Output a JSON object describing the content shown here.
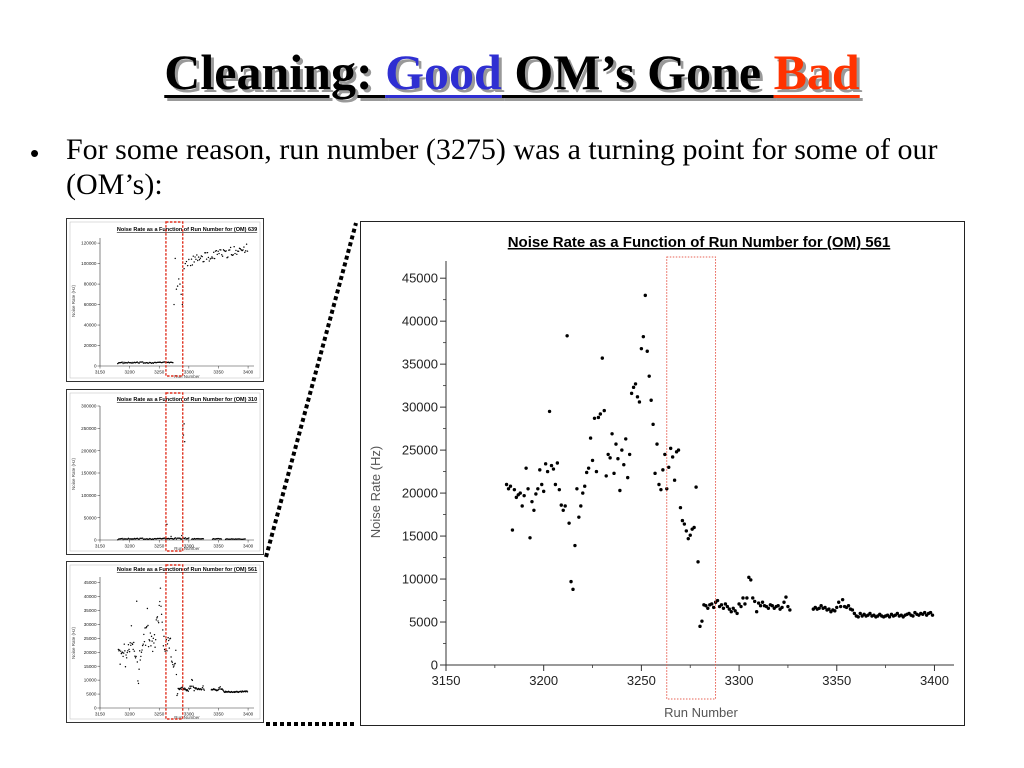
{
  "slide": {
    "title_prefix": "Cleaning: ",
    "title_good": "Good",
    "title_middle": " OM’s Gone ",
    "title_bad": "Bad",
    "bullet": "For some reason, run number (3275) was a turning point for some of our (OM’s):",
    "colors": {
      "good": "#2f2fd2",
      "bad": "#ff3300",
      "highlight_box": "#e0301f"
    }
  },
  "chart_data": [
    {
      "id": "om639",
      "type": "scatter",
      "title": "Noise Rate as a Function of Run Number for (OM) 639",
      "xlabel": "Run Number",
      "ylabel": "Noise Rate (Hz)",
      "xlim": [
        3150,
        3410
      ],
      "ylim": [
        0,
        125000
      ],
      "xticks": [
        3150,
        3200,
        3250,
        3300,
        3350,
        3400
      ],
      "yticks": [
        0,
        20000,
        40000,
        60000,
        80000,
        100000,
        120000
      ],
      "series": [
        {
          "segments": [
            {
              "x0": 3180,
              "x1": 3273,
              "y0": 3000,
              "y1": 3500,
              "jitter": 700,
              "step": 1.5
            },
            {
              "x0": 3303,
              "x1": 3400,
              "y0": 103000,
              "y1": 115000,
              "jitter": 5000,
              "step": 1.5
            }
          ],
          "points": [
            [
              3275,
              60000
            ],
            [
              3277,
              105000
            ],
            [
              3279,
              75000
            ],
            [
              3281,
              78000
            ],
            [
              3283,
              85000
            ],
            [
              3285,
              80000
            ],
            [
              3287,
              70000
            ],
            [
              3289,
              60000
            ],
            [
              3290,
              77000
            ],
            [
              3292,
              95000
            ],
            [
              3294,
              100000
            ],
            [
              3296,
              102000
            ],
            [
              3298,
              98000
            ],
            [
              3300,
              104000
            ]
          ]
        }
      ]
    },
    {
      "id": "om310",
      "type": "scatter",
      "title": "Noise Rate as a Function of Run Number for (OM) 310",
      "xlabel": "Run Number",
      "ylabel": "Noise Rate (Hz)",
      "xlim": [
        3150,
        3410
      ],
      "ylim": [
        0,
        300000
      ],
      "xticks": [
        3150,
        3200,
        3250,
        3300,
        3350,
        3400
      ],
      "yticks": [
        0,
        50000,
        100000,
        150000,
        200000,
        250000,
        300000
      ],
      "series": [
        {
          "segments": [
            {
              "x0": 3180,
              "x1": 3300,
              "y0": 2000,
              "y1": 3500,
              "jitter": 1500,
              "step": 1.5
            },
            {
              "x0": 3305,
              "x1": 3325,
              "y0": 2500,
              "y1": 2500,
              "jitter": 800,
              "step": 1.5
            },
            {
              "x0": 3340,
              "x1": 3355,
              "y0": 2500,
              "y1": 2500,
              "jitter": 800,
              "step": 1.5
            },
            {
              "x0": 3362,
              "x1": 3395,
              "y0": 2000,
              "y1": 2000,
              "jitter": 600,
              "step": 1.5
            }
          ],
          "points": [
            [
              3263,
              35000
            ],
            [
              3270,
              8000
            ],
            [
              3288,
              10000
            ],
            [
              3290,
              250000
            ],
            [
              3291,
              235000
            ],
            [
              3292,
              260000
            ],
            [
              3293,
              220000
            ]
          ]
        }
      ]
    },
    {
      "id": "om561_small",
      "type": "scatter",
      "title": "Noise Rate as a Function of Run Number for (OM) 561",
      "xlabel": "Run Number",
      "ylabel": "Noise Rate (Hz)",
      "xlim": [
        3150,
        3410
      ],
      "ylim": [
        0,
        47000
      ],
      "xticks": [
        3150,
        3200,
        3250,
        3300,
        3350,
        3400
      ],
      "yticks": [
        0,
        5000,
        10000,
        15000,
        20000,
        25000,
        30000,
        35000,
        40000,
        45000
      ]
    },
    {
      "id": "om561",
      "type": "scatter",
      "title": "Noise Rate as a Function of Run Number for (OM) 561",
      "xlabel": "Run Number",
      "ylabel": "Noise Rate (Hz)",
      "xlim": [
        3150,
        3410
      ],
      "ylim": [
        0,
        47000
      ],
      "xticks": [
        3150,
        3200,
        3250,
        3300,
        3350,
        3400
      ],
      "yticks": [
        0,
        5000,
        10000,
        15000,
        20000,
        25000,
        30000,
        35000,
        40000,
        45000
      ],
      "highlight_x": [
        3263,
        3288
      ],
      "series": [
        {
          "points": [
            [
              3181,
              21000
            ],
            [
              3182,
              20500
            ],
            [
              3183,
              20800
            ],
            [
              3184,
              15700
            ],
            [
              3185,
              20400
            ],
            [
              3186,
              19500
            ],
            [
              3187,
              19800
            ],
            [
              3188,
              20000
            ],
            [
              3189,
              18500
            ],
            [
              3190,
              19700
            ],
            [
              3191,
              22900
            ],
            [
              3192,
              20500
            ],
            [
              3193,
              14800
            ],
            [
              3194,
              19000
            ],
            [
              3195,
              18000
            ],
            [
              3196,
              19900
            ],
            [
              3197,
              20500
            ],
            [
              3198,
              22700
            ],
            [
              3199,
              21000
            ],
            [
              3200,
              20200
            ],
            [
              3201,
              23400
            ],
            [
              3202,
              22500
            ],
            [
              3203,
              29500
            ],
            [
              3204,
              23200
            ],
            [
              3205,
              22800
            ],
            [
              3206,
              21000
            ],
            [
              3207,
              23500
            ],
            [
              3208,
              20400
            ],
            [
              3209,
              18600
            ],
            [
              3210,
              18000
            ],
            [
              3211,
              18500
            ],
            [
              3212,
              38300
            ],
            [
              3213,
              16500
            ],
            [
              3214,
              9700
            ],
            [
              3215,
              8800
            ],
            [
              3216,
              13900
            ],
            [
              3217,
              20500
            ],
            [
              3218,
              17200
            ],
            [
              3219,
              18500
            ],
            [
              3220,
              20000
            ],
            [
              3221,
              20800
            ],
            [
              3222,
              22400
            ],
            [
              3223,
              22900
            ],
            [
              3224,
              26400
            ],
            [
              3225,
              23800
            ],
            [
              3226,
              28700
            ],
            [
              3227,
              22500
            ],
            [
              3228,
              28800
            ],
            [
              3229,
              29200
            ],
            [
              3230,
              35700
            ],
            [
              3231,
              29600
            ],
            [
              3232,
              22000
            ],
            [
              3233,
              24500
            ],
            [
              3234,
              24100
            ],
            [
              3235,
              26900
            ],
            [
              3236,
              22300
            ],
            [
              3237,
              25700
            ],
            [
              3238,
              24000
            ],
            [
              3239,
              20300
            ],
            [
              3240,
              25000
            ],
            [
              3241,
              23300
            ],
            [
              3242,
              26300
            ],
            [
              3243,
              21800
            ],
            [
              3244,
              24500
            ],
            [
              3245,
              31600
            ],
            [
              3246,
              32300
            ],
            [
              3247,
              32700
            ],
            [
              3248,
              31200
            ],
            [
              3249,
              30600
            ],
            [
              3250,
              36800
            ],
            [
              3251,
              38200
            ],
            [
              3252,
              43000
            ],
            [
              3253,
              36500
            ],
            [
              3254,
              33600
            ],
            [
              3255,
              30800
            ],
            [
              3256,
              28000
            ],
            [
              3257,
              22300
            ],
            [
              3258,
              25700
            ],
            [
              3259,
              21000
            ],
            [
              3260,
              20400
            ],
            [
              3261,
              22700
            ],
            [
              3262,
              24500
            ],
            [
              3263,
              20500
            ],
            [
              3264,
              23000
            ],
            [
              3265,
              25200
            ],
            [
              3266,
              24200
            ],
            [
              3267,
              21500
            ],
            [
              3268,
              24800
            ],
            [
              3269,
              25000
            ],
            [
              3270,
              18300
            ],
            [
              3271,
              16800
            ],
            [
              3272,
              16400
            ],
            [
              3273,
              15600
            ],
            [
              3274,
              14700
            ],
            [
              3275,
              15100
            ],
            [
              3276,
              15800
            ],
            [
              3277,
              16000
            ],
            [
              3278,
              20700
            ],
            [
              3279,
              12000
            ],
            [
              3280,
              4500
            ],
            [
              3281,
              5100
            ],
            [
              3282,
              7000
            ],
            [
              3283,
              6900
            ],
            [
              3284,
              6600
            ],
            [
              3285,
              7000
            ],
            [
              3286,
              7100
            ],
            [
              3287,
              6700
            ],
            [
              3288,
              7300
            ],
            [
              3289,
              7500
            ],
            [
              3290,
              6800
            ],
            [
              3291,
              7000
            ],
            [
              3292,
              6600
            ],
            [
              3293,
              7100
            ],
            [
              3294,
              6800
            ],
            [
              3295,
              6500
            ],
            [
              3296,
              6200
            ],
            [
              3297,
              6600
            ],
            [
              3298,
              6300
            ],
            [
              3299,
              6000
            ],
            [
              3300,
              7100
            ],
            [
              3301,
              6800
            ],
            [
              3302,
              7800
            ],
            [
              3303,
              7100
            ],
            [
              3304,
              7800
            ],
            [
              3305,
              10200
            ],
            [
              3306,
              9900
            ],
            [
              3307,
              7800
            ],
            [
              3308,
              7400
            ],
            [
              3309,
              6200
            ],
            [
              3310,
              7200
            ],
            [
              3311,
              6900
            ],
            [
              3312,
              7300
            ],
            [
              3313,
              6900
            ],
            [
              3314,
              6800
            ],
            [
              3315,
              6600
            ],
            [
              3316,
              7000
            ],
            [
              3317,
              6900
            ],
            [
              3318,
              6600
            ],
            [
              3319,
              6800
            ],
            [
              3320,
              6900
            ],
            [
              3321,
              6500
            ],
            [
              3322,
              6700
            ],
            [
              3323,
              7300
            ],
            [
              3324,
              7900
            ],
            [
              3325,
              6800
            ],
            [
              3326,
              6400
            ],
            [
              3338,
              6500
            ],
            [
              3339,
              6700
            ],
            [
              3340,
              6500
            ],
            [
              3341,
              6600
            ],
            [
              3342,
              6900
            ],
            [
              3343,
              6600
            ],
            [
              3344,
              6700
            ],
            [
              3345,
              6400
            ],
            [
              3346,
              6500
            ],
            [
              3347,
              6200
            ],
            [
              3348,
              6400
            ],
            [
              3349,
              6300
            ],
            [
              3350,
              6700
            ],
            [
              3351,
              7300
            ],
            [
              3352,
              6800
            ],
            [
              3353,
              7600
            ],
            [
              3354,
              6800
            ],
            [
              3355,
              6700
            ],
            [
              3356,
              6900
            ],
            [
              3357,
              6500
            ],
            [
              3358,
              6400
            ],
            [
              3359,
              6000
            ],
            [
              3360,
              5700
            ],
            [
              3361,
              5600
            ],
            [
              3362,
              6000
            ],
            [
              3363,
              5700
            ],
            [
              3364,
              5900
            ],
            [
              3365,
              5700
            ],
            [
              3366,
              5800
            ],
            [
              3367,
              6000
            ],
            [
              3368,
              5700
            ],
            [
              3369,
              5800
            ],
            [
              3370,
              5600
            ],
            [
              3371,
              5700
            ],
            [
              3372,
              5900
            ],
            [
              3373,
              5700
            ],
            [
              3374,
              5600
            ],
            [
              3375,
              5700
            ],
            [
              3376,
              5800
            ],
            [
              3377,
              5600
            ],
            [
              3378,
              5900
            ],
            [
              3379,
              5700
            ],
            [
              3380,
              5800
            ],
            [
              3381,
              6000
            ],
            [
              3382,
              5700
            ],
            [
              3383,
              5800
            ],
            [
              3384,
              5600
            ],
            [
              3385,
              5800
            ],
            [
              3386,
              5900
            ],
            [
              3387,
              6000
            ],
            [
              3388,
              5800
            ],
            [
              3389,
              5700
            ],
            [
              3390,
              6100
            ],
            [
              3391,
              5900
            ],
            [
              3392,
              5800
            ],
            [
              3393,
              6000
            ],
            [
              3394,
              5900
            ],
            [
              3395,
              6100
            ],
            [
              3396,
              5800
            ],
            [
              3397,
              6000
            ],
            [
              3398,
              6100
            ],
            [
              3399,
              5800
            ]
          ]
        }
      ]
    }
  ]
}
